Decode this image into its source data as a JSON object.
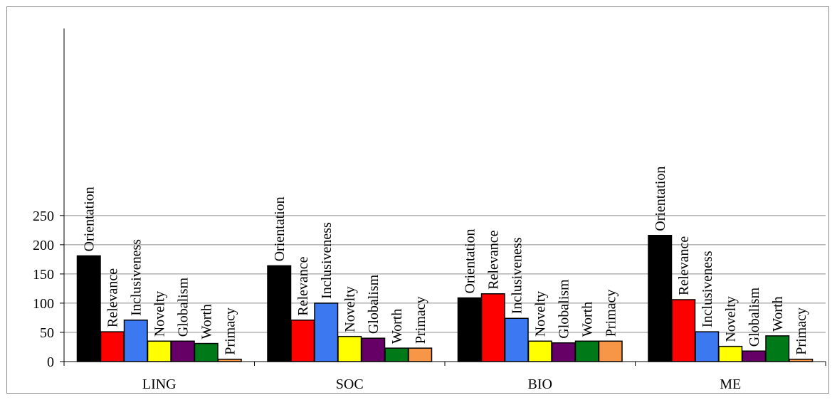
{
  "chart_data": {
    "type": "bar",
    "categories": [
      "LING",
      "SOC",
      "BIO",
      "ME"
    ],
    "series": [
      {
        "name": "Orientation",
        "color": "#000000",
        "values": [
          181,
          164,
          109,
          216
        ]
      },
      {
        "name": "Relevance",
        "color": "#ff0000",
        "values": [
          51,
          71,
          116,
          106
        ]
      },
      {
        "name": "Inclusiveness",
        "color": "#3c78f0",
        "values": [
          71,
          100,
          74,
          51
        ]
      },
      {
        "name": "Novelty",
        "color": "#ffff00",
        "values": [
          35,
          43,
          35,
          26
        ]
      },
      {
        "name": "Globalism",
        "color": "#660066",
        "values": [
          35,
          40,
          32,
          18
        ]
      },
      {
        "name": "Worth",
        "color": "#007a18",
        "values": [
          31,
          23,
          35,
          44
        ]
      },
      {
        "name": "Primacy",
        "color": "#f79646",
        "values": [
          4,
          23,
          35,
          4
        ]
      }
    ],
    "yticks": [
      "0",
      "50",
      "100",
      "150",
      "200",
      "250"
    ],
    "ylim": [
      0,
      280
    ],
    "grid": true,
    "title": "",
    "xlabel": "",
    "ylabel": ""
  }
}
